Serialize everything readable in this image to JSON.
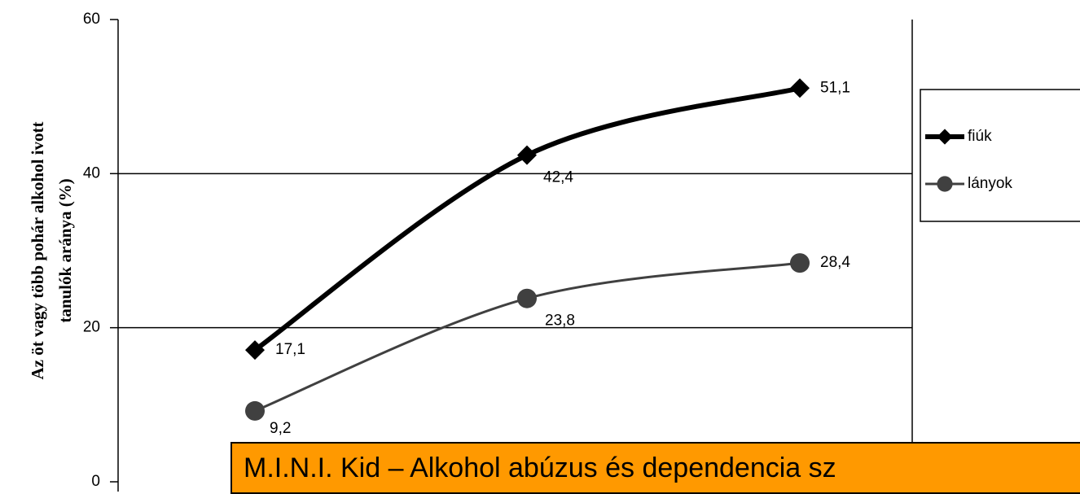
{
  "chart_data": {
    "type": "line",
    "y_label": [
      "Az öt vagy több pohár alkohol ivott",
      "tanulók aránya (%)"
    ],
    "categories": [
      null,
      null,
      null
    ],
    "series": [
      {
        "name": "fiúk",
        "color": "#000000",
        "marker": "diamond",
        "values": [
          17.1,
          42.4,
          51.1
        ],
        "value_labels": [
          "17,1",
          "42,4",
          "51,1"
        ]
      },
      {
        "name": "lányok",
        "color": "#404040",
        "marker": "circle",
        "values": [
          9.2,
          23.8,
          28.4
        ],
        "value_labels": [
          "9,2",
          "23,8",
          "28,4"
        ]
      }
    ],
    "ylim": [
      0,
      60
    ],
    "yticks": [
      0,
      20,
      40,
      60
    ],
    "grid": true,
    "legend": "right"
  },
  "banner": "M.I.N.I. Kid – Alkohol abúzus és dependencia sz"
}
